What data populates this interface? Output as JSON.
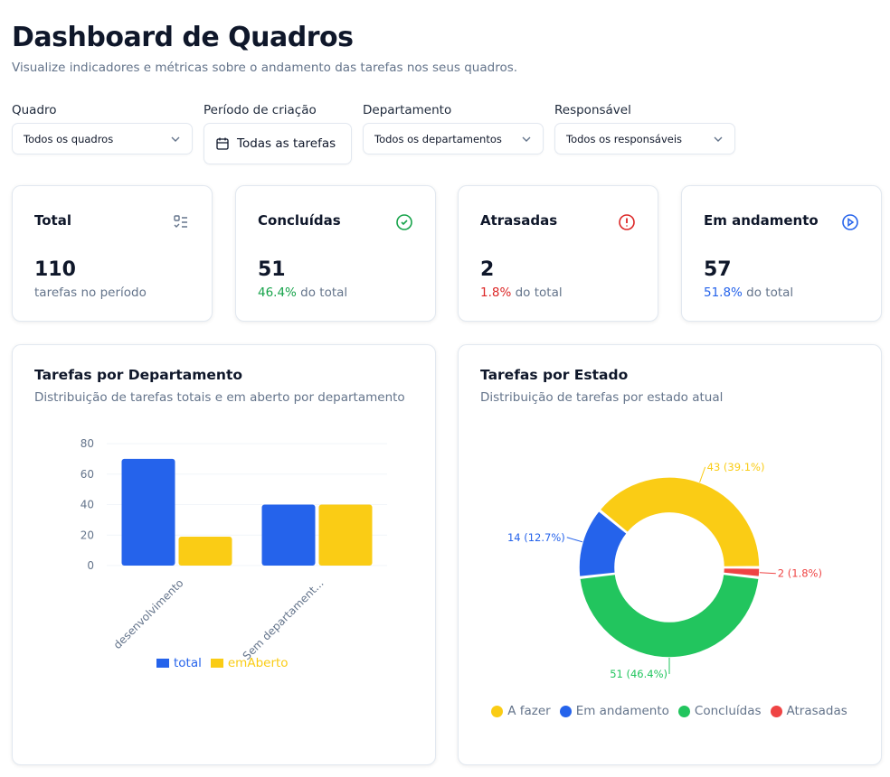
{
  "header": {
    "title": "Dashboard de Quadros",
    "subtitle": "Visualize indicadores e métricas sobre o andamento das tarefas nos seus quadros."
  },
  "filters": [
    {
      "label": "Quadro",
      "value": "Todos os quadros"
    },
    {
      "label": "Período de criação",
      "value": "Todas as tarefas"
    },
    {
      "label": "Departamento",
      "value": "Todos os departamentos"
    },
    {
      "label": "Responsável",
      "value": "Todos os responsáveis"
    }
  ],
  "stats": [
    {
      "title": "Total",
      "value": "110",
      "pct": "",
      "desc": "tarefas no período",
      "icon": "list-check-icon",
      "color": "#64748b"
    },
    {
      "title": "Concluídas",
      "value": "51",
      "pct": "46.4%",
      "desc": " do total",
      "icon": "check-circle-icon",
      "color": "#16a34a"
    },
    {
      "title": "Atrasadas",
      "value": "2",
      "pct": "1.8%",
      "desc": " do total",
      "icon": "alert-circle-icon",
      "color": "#dc2626"
    },
    {
      "title": "Em andamento",
      "value": "57",
      "pct": "51.8%",
      "desc": " do total",
      "icon": "play-circle-icon",
      "color": "#2563eb"
    }
  ],
  "charts": {
    "dept": {
      "title": "Tarefas por Departamento",
      "subtitle": "Distribuição de tarefas totais e em aberto por departamento"
    },
    "state": {
      "title": "Tarefas por Estado",
      "subtitle": "Distribuição de tarefas por estado atual"
    }
  },
  "chart_data": [
    {
      "type": "bar",
      "categories": [
        "desenvolvimento",
        "Sem departament..."
      ],
      "series": [
        {
          "name": "total",
          "values": [
            70,
            40
          ],
          "color": "#2563eb"
        },
        {
          "name": "emAberto",
          "values": [
            19,
            40
          ],
          "color": "#facc15"
        }
      ],
      "ylim": [
        0,
        80
      ],
      "yticks": [
        "0",
        "20",
        "40",
        "60",
        "80"
      ],
      "grid": true,
      "legend": "bottom"
    },
    {
      "type": "pie",
      "donut": true,
      "slices": [
        {
          "name": "A fazer",
          "value": 43,
          "label": "43 (39.1%)",
          "color": "#facc15"
        },
        {
          "name": "Em andamento",
          "value": 14,
          "label": "14 (12.7%)",
          "color": "#2563eb"
        },
        {
          "name": "Concluídas",
          "value": 51,
          "label": "51 (46.4%)",
          "color": "#22c55e"
        },
        {
          "name": "Atrasadas",
          "value": 2,
          "label": "2 (1.8%)",
          "color": "#ef4444"
        }
      ],
      "legend": "bottom"
    }
  ]
}
